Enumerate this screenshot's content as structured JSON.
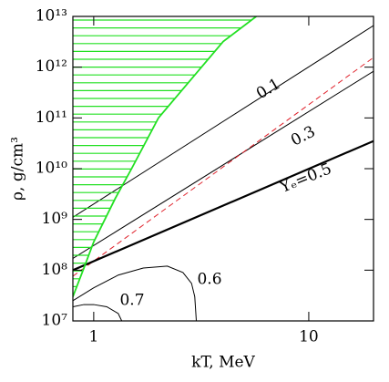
{
  "chart_data": {
    "type": "line",
    "xlabel": "kT, MeV",
    "ylabel": "ρ, g/cm³",
    "log_x": true,
    "log_y": true,
    "xlim": [
      0.8,
      20
    ],
    "ylim": [
      10000000.0,
      10000000000000.0
    ],
    "xticks": [
      1,
      10
    ],
    "yticks": [
      {
        "value": 10000000.0,
        "label": "10⁷"
      },
      {
        "value": 100000000.0,
        "label": "10⁸"
      },
      {
        "value": 1000000000.0,
        "label": "10⁹"
      },
      {
        "value": 10000000000.0,
        "label": "10¹⁰"
      },
      {
        "value": 100000000000.0,
        "label": "10¹¹"
      },
      {
        "value": 1000000000000.0,
        "label": "10¹²"
      },
      {
        "value": 10000000000000.0,
        "label": "10¹³"
      }
    ],
    "series": [
      {
        "name": "0.1",
        "color": "#000000",
        "x": [
          0.8,
          20
        ],
        "values": [
          1100000000.0,
          6600000000000.0
        ]
      },
      {
        "name": "0.3",
        "color": "#000000",
        "x": [
          0.8,
          20
        ],
        "values": [
          170000000.0,
          830000000000.0
        ]
      },
      {
        "color": "#e0202a",
        "style": "dashed",
        "x": [
          0.8,
          20
        ],
        "values": [
          76000000.0,
          1550000000000.0
        ]
      },
      {
        "name": "Yₑ=0.5",
        "color": "#000000",
        "width": 2.2,
        "x": [
          0.8,
          20
        ],
        "values": [
          100000000.0,
          35000000000.0
        ]
      },
      {
        "name": "0.6",
        "color": "#000000",
        "x": [
          0.8,
          1,
          1.3,
          1.7,
          2.2,
          2.6,
          2.85,
          2.95,
          3.0
        ],
        "values": [
          25000000.0,
          45000000.0,
          80000000.0,
          110000000.0,
          120000000.0,
          90000000.0,
          55000000.0,
          30000000.0,
          10000000.0
        ]
      },
      {
        "name": "0.7",
        "color": "#000000",
        "x": [
          0.8,
          0.9,
          1,
          1.15,
          1.3,
          1.35
        ],
        "values": [
          19000000.0,
          21000000.0,
          21000000.0,
          19000000.0,
          14000000.0,
          10000000.0
        ]
      },
      {
        "color": "#22e022",
        "hatched": true,
        "x": [
          0.8,
          0.9,
          1,
          1.26,
          1.5,
          2,
          3,
          4,
          5.7
        ],
        "values": [
          30000000.0,
          110000000.0,
          360000000.0,
          2600000000.0,
          10000000000.0,
          100000000000.0,
          760000000000.0,
          3200000000000.0,
          10000000000000.0
        ]
      }
    ]
  }
}
